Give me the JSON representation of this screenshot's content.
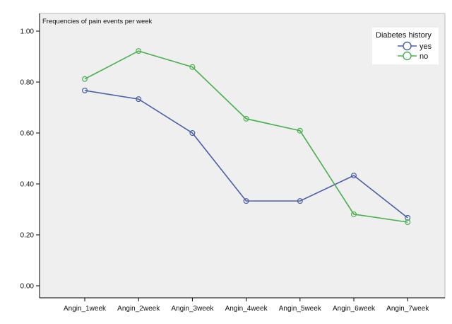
{
  "chart_data": {
    "type": "line",
    "title": "Frequencies of pain events per week",
    "xlabel": "",
    "ylabel": "",
    "categories": [
      "Angin_1week",
      "Angin_2week",
      "Angin_3week",
      "Angin_4week",
      "Angin_5week",
      "Angin_6week",
      "Angin_7week"
    ],
    "yticks": [
      "0.00",
      "0.20",
      "0.40",
      "0.60",
      "0.80",
      "1.00"
    ],
    "ylim": [
      0,
      1.0
    ],
    "grid": false,
    "legend": {
      "title": "Diabetes history",
      "placement": "top-right"
    },
    "series": [
      {
        "name": "yes",
        "color": "#4a5fa8",
        "values": [
          0.767,
          0.733,
          0.6,
          0.333,
          0.333,
          0.433,
          0.267
        ]
      },
      {
        "name": "no",
        "color": "#49b04d",
        "values": [
          0.812,
          0.922,
          0.859,
          0.656,
          0.609,
          0.281,
          0.25
        ]
      }
    ],
    "colors": {
      "plot_background": "#efefef",
      "axis": "#000000"
    }
  }
}
